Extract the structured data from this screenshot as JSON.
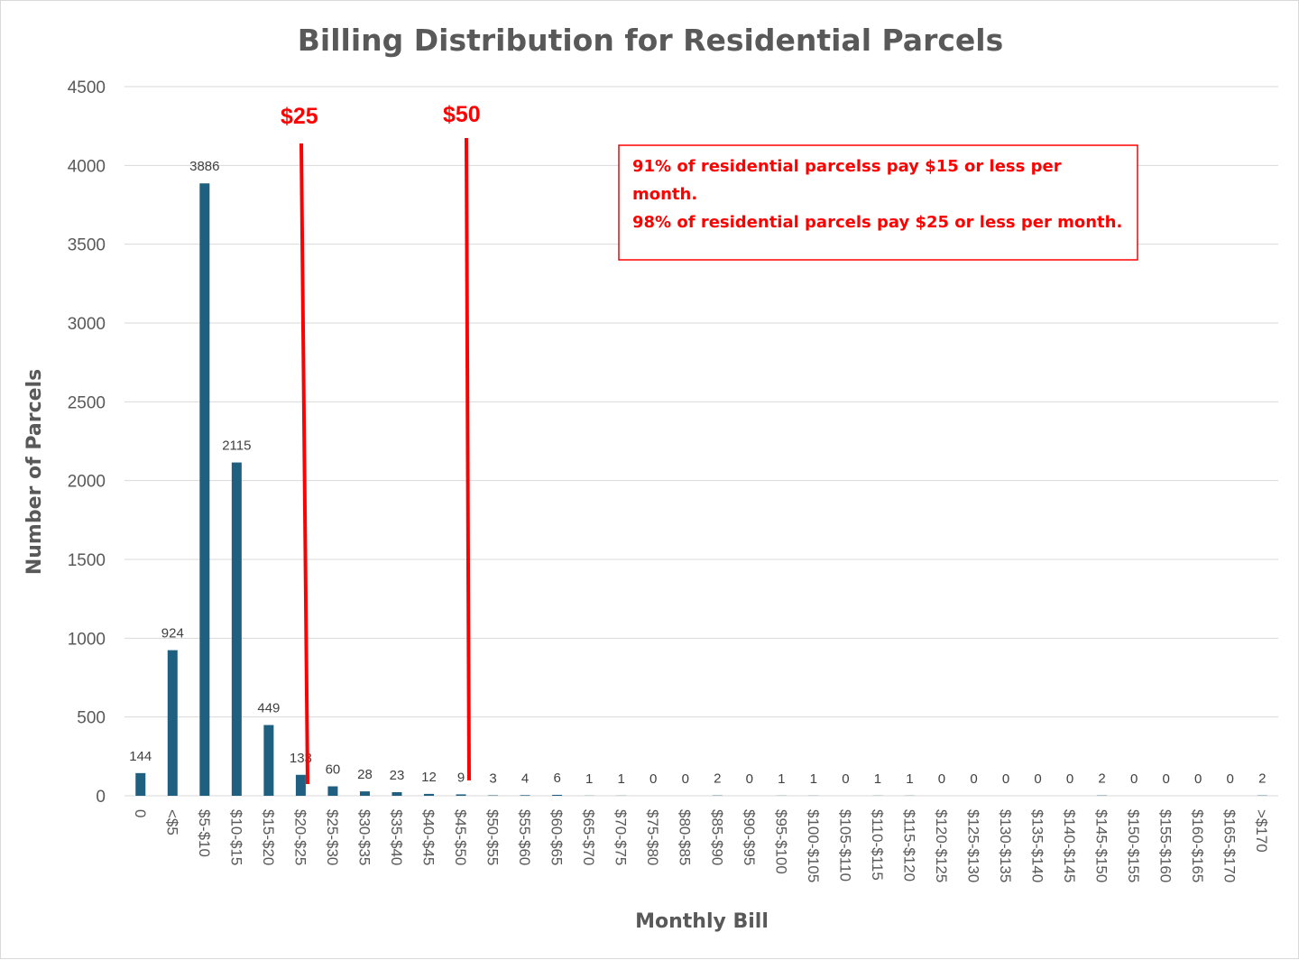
{
  "chart_data": {
    "type": "bar",
    "title": "Billing Distribution for Residential Parcels",
    "xlabel": "Monthly Bill",
    "ylabel": "Number of Parcels",
    "ylim": [
      0,
      4500
    ],
    "yticks": [
      "0",
      "500",
      "1000",
      "1500",
      "2000",
      "2500",
      "3000",
      "3500",
      "4000",
      "4500"
    ],
    "grid": true,
    "legend": "none",
    "bar_color": "#1f5f7f",
    "categories": [
      "0",
      "<$5",
      "$5-$10",
      "$10-$15",
      "$15-$20",
      "$20-$25",
      "$25-$30",
      "$30-$35",
      "$35-$40",
      "$40-$45",
      "$45-$50",
      "$50-$55",
      "$55-$60",
      "$60-$65",
      "$65-$70",
      "$70-$75",
      "$75-$80",
      "$80-$85",
      "$85-$90",
      "$90-$95",
      "$95-$100",
      "$100-$105",
      "$105-$110",
      "$110-$115",
      "$115-$120",
      "$120-$125",
      "$125-$130",
      "$130-$135",
      "$135-$140",
      "$140-$145",
      "$145-$150",
      "$150-$155",
      "$155-$160",
      "$160-$165",
      "$165-$170",
      ">$170"
    ],
    "values": [
      144,
      924,
      3886,
      2115,
      449,
      133,
      60,
      28,
      23,
      12,
      9,
      3,
      4,
      6,
      1,
      1,
      0,
      0,
      2,
      0,
      1,
      1,
      0,
      1,
      1,
      0,
      0,
      0,
      0,
      0,
      2,
      0,
      0,
      0,
      0,
      2
    ],
    "annotations": {
      "markers": [
        {
          "label": "$25",
          "color": "#ff0000"
        },
        {
          "label": "$50",
          "color": "#ff0000"
        }
      ],
      "note_lines": [
        "91% of residential parcelss  pay $15 or less per",
        "month.",
        "98% of residential parcels pay $25 or less per month."
      ],
      "note_color": "#ff0000"
    }
  }
}
